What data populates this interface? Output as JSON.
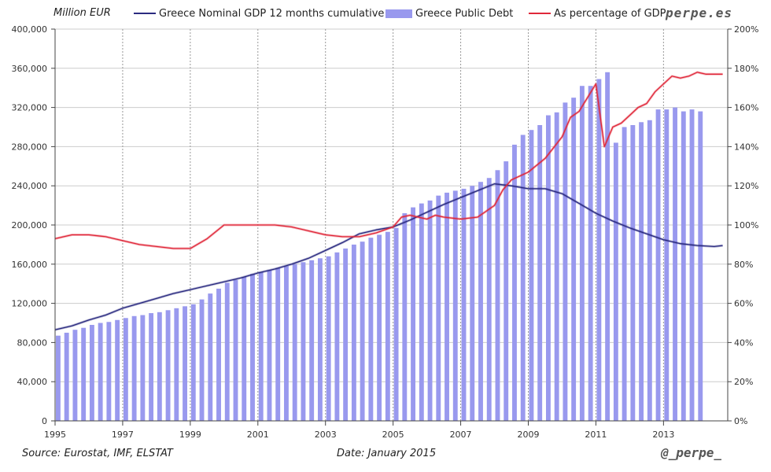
{
  "header": {
    "units": "Million EUR",
    "brand": "perpe.es"
  },
  "footer": {
    "source": "Source: Eurostat, IMF, ELSTAT",
    "date": "Date: January 2015",
    "handle": "@_perpe_"
  },
  "colors": {
    "gdp_line": "#2b2b80",
    "debt_bar": "#9999ee",
    "ratio_line": "#e0283a",
    "grid": "#cccccc",
    "axis": "#444444"
  },
  "chart_data": {
    "type": "bar+line",
    "x_tick_labels": [
      "1995",
      "1997",
      "1999",
      "2001",
      "2003",
      "2005",
      "2007",
      "2009",
      "2011",
      "2013"
    ],
    "x_range": [
      1995.0,
      2014.9
    ],
    "y_left": {
      "label": "Million EUR",
      "range": [
        0,
        400000
      ],
      "ticks": [
        "0",
        "40,000",
        "80,000",
        "120,000",
        "160,000",
        "200,000",
        "240,000",
        "280,000",
        "320,000",
        "360,000",
        "400,000"
      ]
    },
    "y_right": {
      "range": [
        0,
        200
      ],
      "ticks": [
        "0%",
        "20%",
        "40%",
        "60%",
        "80%",
        "100%",
        "120%",
        "140%",
        "160%",
        "180%",
        "200%"
      ]
    },
    "grid": true,
    "legend_position": "top",
    "series": [
      {
        "name": "Greece Nominal GDP 12 months cumulative",
        "type": "line",
        "axis": "left",
        "x": [
          1995.0,
          1995.5,
          1996.0,
          1996.5,
          1997.0,
          1997.5,
          1998.0,
          1998.5,
          1999.0,
          1999.5,
          2000.0,
          2000.5,
          2001.0,
          2001.5,
          2002.0,
          2002.5,
          2003.0,
          2003.5,
          2004.0,
          2004.5,
          2005.0,
          2005.5,
          2006.0,
          2006.5,
          2007.0,
          2007.5,
          2008.0,
          2008.5,
          2009.0,
          2009.5,
          2010.0,
          2010.5,
          2011.0,
          2011.5,
          2012.0,
          2012.5,
          2013.0,
          2013.5,
          2014.0,
          2014.5,
          2014.75
        ],
        "values": [
          93000,
          97000,
          103000,
          108000,
          115000,
          120000,
          125000,
          130000,
          134000,
          138000,
          142000,
          146000,
          151000,
          155000,
          160000,
          166000,
          174000,
          182000,
          191000,
          195000,
          198000,
          205000,
          213000,
          221000,
          228000,
          235000,
          242000,
          240000,
          237000,
          237000,
          232000,
          222000,
          212000,
          204000,
          197000,
          191000,
          185000,
          181000,
          179000,
          178000,
          179000
        ]
      },
      {
        "name": "Greece Public Debt",
        "type": "bar",
        "axis": "left",
        "x": [
          1995.0,
          1995.25,
          1995.5,
          1995.75,
          1996.0,
          1996.25,
          1996.5,
          1996.75,
          1997.0,
          1997.25,
          1997.5,
          1997.75,
          1998.0,
          1998.25,
          1998.5,
          1998.75,
          1999.0,
          1999.25,
          1999.5,
          1999.75,
          2000.0,
          2000.25,
          2000.5,
          2000.75,
          2001.0,
          2001.25,
          2001.5,
          2001.75,
          2002.0,
          2002.25,
          2002.5,
          2002.75,
          2003.0,
          2003.25,
          2003.5,
          2003.75,
          2004.0,
          2004.25,
          2004.5,
          2004.75,
          2005.0,
          2005.25,
          2005.5,
          2005.75,
          2006.0,
          2006.25,
          2006.5,
          2006.75,
          2007.0,
          2007.25,
          2007.5,
          2007.75,
          2008.0,
          2008.25,
          2008.5,
          2008.75,
          2009.0,
          2009.25,
          2009.5,
          2009.75,
          2010.0,
          2010.25,
          2010.5,
          2010.75,
          2011.0,
          2011.25,
          2011.5,
          2011.75,
          2012.0,
          2012.25,
          2012.5,
          2012.75,
          2013.0,
          2013.25,
          2013.5,
          2013.75,
          2014.0,
          2014.25,
          2014.5,
          2014.75
        ],
        "values": [
          87000,
          90000,
          93000,
          95000,
          98000,
          100000,
          101000,
          103000,
          105000,
          107000,
          108000,
          110000,
          111000,
          113000,
          115000,
          117000,
          119000,
          124000,
          130000,
          135000,
          141000,
          144000,
          147000,
          150000,
          152000,
          154000,
          156000,
          158000,
          160000,
          162000,
          164000,
          166000,
          168000,
          172000,
          176000,
          180000,
          183000,
          187000,
          190000,
          193000,
          197000,
          212000,
          218000,
          222000,
          225000,
          230000,
          233000,
          235000,
          237000,
          240000,
          244000,
          248000,
          256000,
          265000,
          282000,
          292000,
          297000,
          302000,
          312000,
          315000,
          325000,
          330000,
          342000,
          342000,
          349000,
          356000,
          284000,
          300000,
          302000,
          305000,
          307000,
          318000,
          318000,
          320000,
          316000,
          318000,
          316000,
          0,
          0,
          0
        ]
      },
      {
        "name": "As percentage of GDP",
        "type": "line",
        "axis": "right",
        "x": [
          1995.0,
          1995.5,
          1996.0,
          1996.5,
          1997.0,
          1997.5,
          1998.0,
          1998.5,
          1999.0,
          1999.5,
          2000.0,
          2000.5,
          2001.0,
          2001.5,
          2002.0,
          2002.5,
          2003.0,
          2003.5,
          2004.0,
          2004.5,
          2005.0,
          2005.25,
          2005.5,
          2006.0,
          2006.25,
          2006.5,
          2007.0,
          2007.5,
          2007.75,
          2008.0,
          2008.25,
          2008.5,
          2009.0,
          2009.5,
          2010.0,
          2010.25,
          2010.5,
          2010.75,
          2011.0,
          2011.25,
          2011.5,
          2011.75,
          2012.0,
          2012.25,
          2012.5,
          2012.75,
          2013.0,
          2013.25,
          2013.5,
          2013.75,
          2014.0,
          2014.25,
          2014.5,
          2014.75
        ],
        "values": [
          93,
          95,
          95,
          94,
          92,
          90,
          89,
          88,
          88,
          93,
          100,
          100,
          100,
          100,
          99,
          97,
          95,
          94,
          94,
          96,
          99,
          104,
          105,
          103,
          105,
          104,
          103,
          104,
          107,
          110,
          118,
          123,
          127,
          134,
          145,
          155,
          158,
          165,
          172,
          140,
          150,
          152,
          156,
          160,
          162,
          168,
          172,
          176,
          175,
          176,
          178,
          177,
          177,
          177
        ]
      }
    ]
  }
}
